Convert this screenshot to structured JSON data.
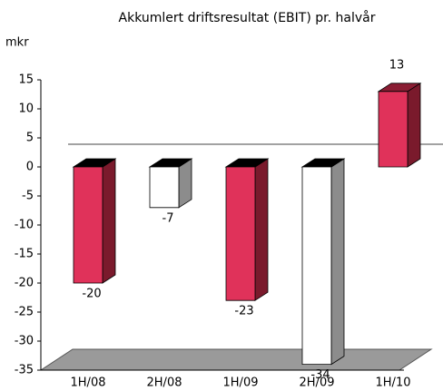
{
  "chart_data": {
    "type": "bar3d",
    "title": "Akkumlert driftsresultat (EBIT) pr. halvår",
    "y_label": "mkr",
    "categories": [
      "1H/08",
      "2H/08",
      "1H/09",
      "2H/09",
      "1H/10"
    ],
    "values": [
      -20,
      -7,
      -23,
      -34,
      13
    ],
    "colors": [
      "#e0325a",
      "#ffffff",
      "#e0325a",
      "#ffffff",
      "#e0325a"
    ],
    "side_colors": [
      "#7a1a2c",
      "#8c8c8c",
      "#7a1a2c",
      "#8c8c8c",
      "#7a1a2c"
    ],
    "ylim": [
      -35,
      15
    ],
    "yticks": [
      -35,
      -30,
      -25,
      -20,
      -15,
      -10,
      -5,
      0,
      5,
      10,
      15
    ],
    "grid": false
  }
}
